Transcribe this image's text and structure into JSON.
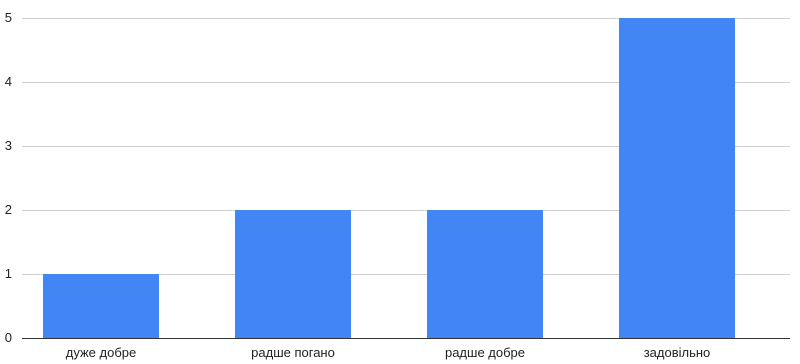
{
  "chart_data": {
    "type": "bar",
    "categories": [
      "дуже добре",
      "радше погано",
      "радше добре",
      "задовільно"
    ],
    "values": [
      1,
      2,
      2,
      5
    ],
    "title": "",
    "xlabel": "",
    "ylabel": "",
    "ylim": [
      0,
      5
    ],
    "yticks": [
      "0",
      "1",
      "2",
      "3",
      "4",
      "5"
    ],
    "grid": true,
    "legend": "none",
    "colors": {
      "bar": "#4285f4",
      "grid": "#d0d0d0",
      "axis": "#333333",
      "text": "#222222"
    }
  }
}
